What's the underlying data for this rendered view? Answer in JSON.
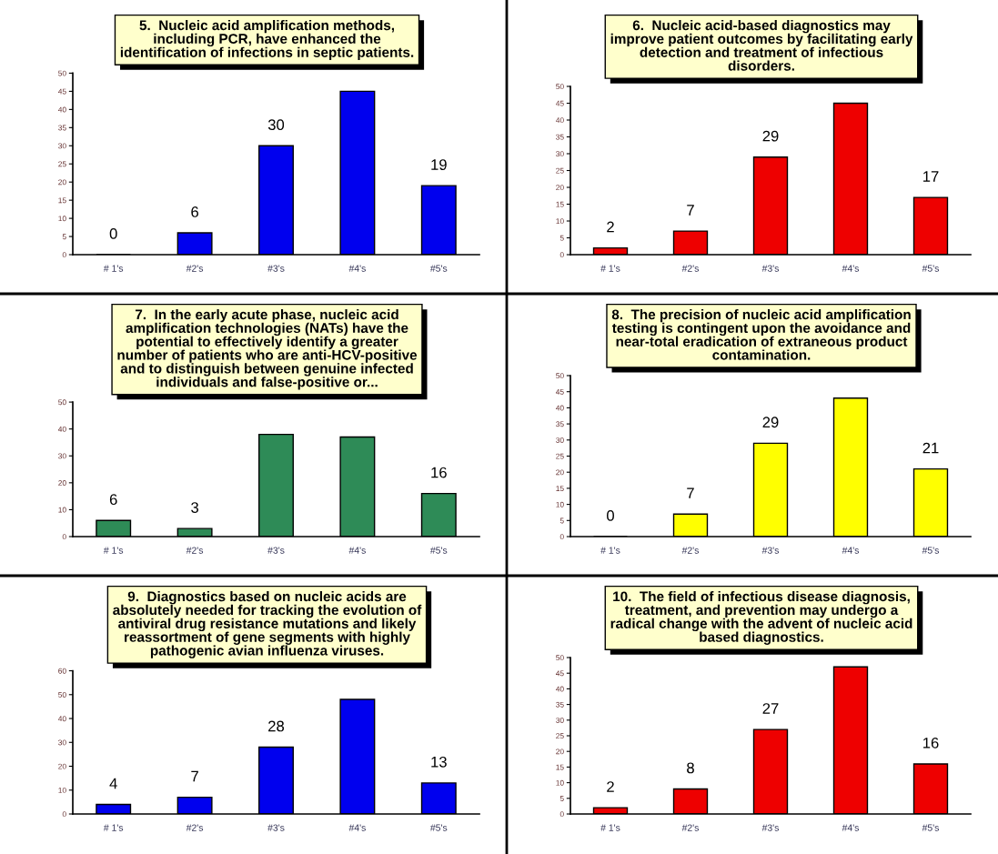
{
  "chart_data": [
    {
      "type": "bar",
      "title": "5.  Nucleic acid amplification methods,\nincluding PCR, have enhanced the\nidentification of infections in septic patients.",
      "categories": [
        "# 1's",
        "#2's",
        "#3's",
        "#4's",
        "#5's"
      ],
      "values": [
        0,
        6,
        30,
        45,
        19
      ],
      "value_labels": [
        "0",
        "6",
        "30",
        null,
        "19"
      ],
      "color": "#0000ee",
      "ylim": [
        0,
        50
      ],
      "yticks": [
        0,
        5,
        10,
        15,
        20,
        25,
        30,
        35,
        40,
        45,
        50
      ]
    },
    {
      "type": "bar",
      "title": "6.  Nucleic acid-based diagnostics may\nimprove patient outcomes by facilitating early\ndetection and treatment of infectious\ndisorders.",
      "categories": [
        "# 1's",
        "#2's",
        "#3's",
        "#4's",
        "#5's"
      ],
      "values": [
        2,
        7,
        29,
        45,
        17
      ],
      "value_labels": [
        "2",
        "7",
        "29",
        null,
        "17"
      ],
      "color": "#ee0000",
      "ylim": [
        0,
        50
      ],
      "yticks": [
        0,
        5,
        10,
        15,
        20,
        25,
        30,
        35,
        40,
        45,
        50
      ]
    },
    {
      "type": "bar",
      "title": "7.  In the early acute phase, nucleic acid\namplification technologies (NATs) have the\npotential to effectively identify a greater\nnumber of patients who are anti-HCV-positive\nand to distinguish between genuine infected\nindividuals and false-positive or...",
      "categories": [
        "# 1's",
        "#2's",
        "#3's",
        "#4's",
        "#5's"
      ],
      "values": [
        6,
        3,
        38,
        37,
        16
      ],
      "value_labels": [
        "6",
        "3",
        null,
        null,
        "16"
      ],
      "color": "#2e8b57",
      "ylim": [
        0,
        50
      ],
      "yticks": [
        0,
        10,
        20,
        30,
        40,
        50
      ]
    },
    {
      "type": "bar",
      "title": "8.  The precision of nucleic acid amplification\ntesting is contingent upon the avoidance and\nnear-total eradication of extraneous product\ncontamination.",
      "categories": [
        "# 1's",
        "#2's",
        "#3's",
        "#4's",
        "#5's"
      ],
      "values": [
        0,
        7,
        29,
        43,
        21
      ],
      "value_labels": [
        "0",
        "7",
        "29",
        null,
        "21"
      ],
      "color": "#ffff00",
      "ylim": [
        0,
        50
      ],
      "yticks": [
        0,
        5,
        10,
        15,
        20,
        25,
        30,
        35,
        40,
        45,
        50
      ]
    },
    {
      "type": "bar",
      "title": "9.  Diagnostics based on nucleic acids are\nabsolutely needed for tracking the evolution of\nantiviral drug resistance mutations and likely\nreassortment of gene segments with highly\npathogenic avian influenza viruses.",
      "categories": [
        "# 1's",
        "#2's",
        "#3's",
        "#4's",
        "#5's"
      ],
      "values": [
        4,
        7,
        28,
        48,
        13
      ],
      "value_labels": [
        "4",
        "7",
        "28",
        null,
        "13"
      ],
      "color": "#0000ee",
      "ylim": [
        0,
        60
      ],
      "yticks": [
        0,
        10,
        20,
        30,
        40,
        50,
        60
      ]
    },
    {
      "type": "bar",
      "title": "10.  The field of infectious disease diagnosis,\ntreatment, and prevention may undergo a\nradical change with the advent of nucleic acid\nbased diagnostics.",
      "categories": [
        "# 1's",
        "#2's",
        "#3's",
        "#4's",
        "#5's"
      ],
      "values": [
        2,
        8,
        27,
        47,
        16
      ],
      "value_labels": [
        "2",
        "8",
        "27",
        null,
        "16"
      ],
      "color": "#ee0000",
      "ylim": [
        0,
        50
      ],
      "yticks": [
        0,
        5,
        10,
        15,
        20,
        25,
        30,
        35,
        40,
        45,
        50
      ]
    }
  ]
}
